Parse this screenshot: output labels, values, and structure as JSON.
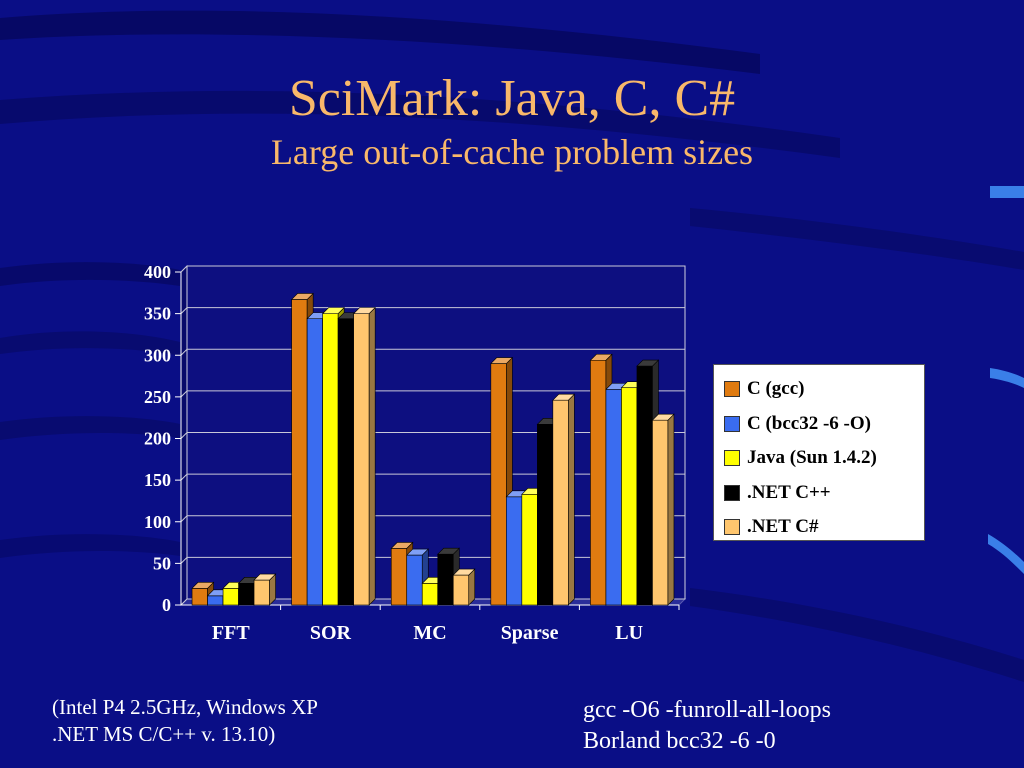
{
  "slide": {
    "title": "SciMark: Java, C, C#",
    "subtitle": "Large out-of-cache problem sizes",
    "notes_left": [
      "(Intel P4 2.5GHz, Windows XP",
      ".NET MS C/C++ v. 13.10)"
    ],
    "notes_right": [
      "gcc -O6 -funroll-all-loops",
      "Borland bcc32 -6 -0"
    ]
  },
  "colors": {
    "background": "#0a0e86",
    "title": "#f9b86a",
    "plot_background": "#0d0f80"
  },
  "chart_data": {
    "type": "bar",
    "title": "",
    "xlabel": "",
    "ylabel": "",
    "categories": [
      "FFT",
      "SOR",
      "MC",
      "Sparse",
      "LU"
    ],
    "ylim": [
      0,
      400
    ],
    "yticks": [
      0,
      50,
      100,
      150,
      200,
      250,
      300,
      350,
      400
    ],
    "grid": true,
    "legend_position": "right",
    "series": [
      {
        "name": "C (gcc)",
        "color": "#e07b10",
        "values": [
          20,
          367,
          68,
          290,
          294
        ]
      },
      {
        "name": "C (bcc32 -6 -O)",
        "color": "#3a6cf0",
        "values": [
          11,
          344,
          60,
          130,
          259
        ]
      },
      {
        "name": "Java (Sun 1.4.2)",
        "color": "#ffff00",
        "values": [
          20,
          350,
          26,
          133,
          261
        ]
      },
      {
        "name": ".NET C++",
        "color": "#000000",
        "values": [
          26,
          344,
          61,
          217,
          287
        ]
      },
      {
        "name": ".NET C#",
        "color": "#ffc66e",
        "values": [
          30,
          350,
          36,
          246,
          222
        ]
      }
    ]
  }
}
